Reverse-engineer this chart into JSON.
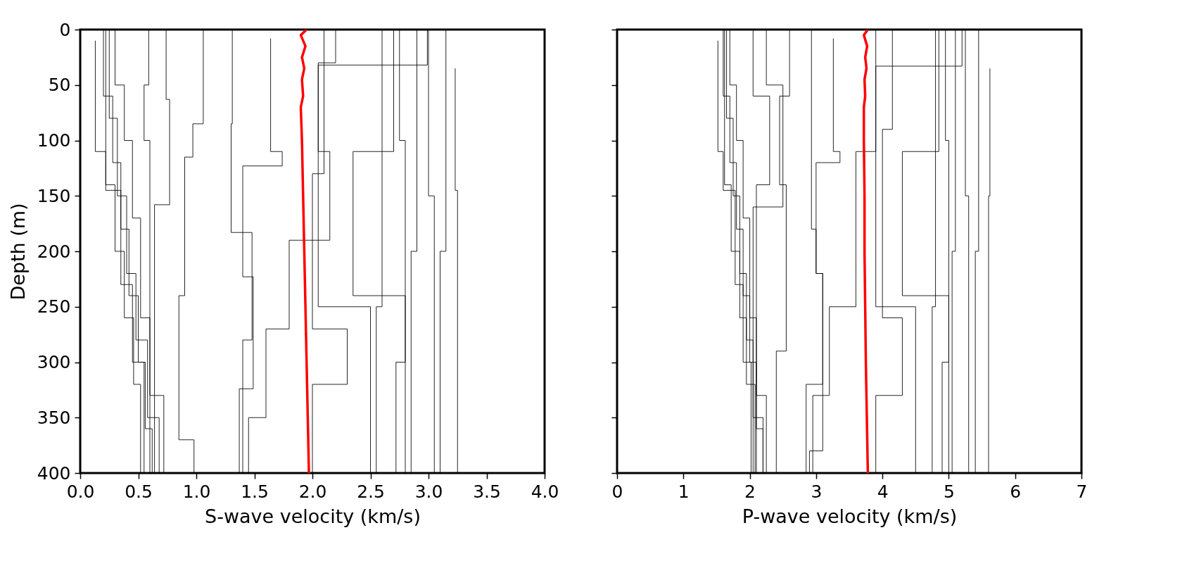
{
  "chart_data": [
    {
      "type": "line",
      "xlabel": "S-wave velocity (km/s)",
      "ylabel": "Depth (m)",
      "xlim": [
        0,
        4
      ],
      "ylim": [
        400,
        0
      ],
      "xticks": [
        {
          "value": 0,
          "label": "0.0"
        },
        {
          "value": 0.5,
          "label": "0.5"
        },
        {
          "value": 1,
          "label": "1.0"
        },
        {
          "value": 1.5,
          "label": "1.5"
        },
        {
          "value": 2,
          "label": "2.0"
        },
        {
          "value": 2.5,
          "label": "2.5"
        },
        {
          "value": 3,
          "label": "3.0"
        },
        {
          "value": 3.5,
          "label": "3.5"
        },
        {
          "value": 4,
          "label": "4.0"
        }
      ],
      "yticks": [
        0,
        50,
        100,
        150,
        200,
        250,
        300,
        350,
        400
      ],
      "grid": false,
      "series": [
        {
          "color": "#000000",
          "x": [
            0.2,
            0.2,
            0.28,
            0.28,
            0.35,
            0.35,
            0.42,
            0.42,
            0.5,
            0.5,
            0.56,
            0.56,
            0.62,
            0.62
          ],
          "values": [
            0,
            60,
            60,
            120,
            120,
            180,
            180,
            240,
            240,
            300,
            300,
            360,
            360,
            400
          ]
        },
        {
          "color": "#000000",
          "x": [
            0.25,
            0.25,
            0.32,
            0.32,
            0.4,
            0.4,
            0.48,
            0.48,
            0.58,
            0.58,
            0.68,
            0.68
          ],
          "values": [
            0,
            80,
            80,
            150,
            150,
            220,
            220,
            280,
            280,
            350,
            350,
            400
          ]
        },
        {
          "color": "#000000",
          "x": [
            0.13,
            0.13,
            0.22,
            0.22,
            0.35,
            0.35,
            0.45,
            0.45,
            0.55,
            0.55
          ],
          "values": [
            10,
            110,
            110,
            145,
            145,
            230,
            230,
            300,
            300,
            400
          ]
        },
        {
          "color": "#000000",
          "x": [
            0.3,
            0.3,
            0.38,
            0.38,
            0.45,
            0.45,
            0.52,
            0.52,
            0.6,
            0.6,
            0.72,
            0.72
          ],
          "values": [
            0,
            50,
            50,
            100,
            100,
            170,
            170,
            260,
            260,
            330,
            330,
            400
          ]
        },
        {
          "color": "#000000",
          "x": [
            0.22,
            0.22,
            0.3,
            0.3,
            0.38,
            0.38,
            0.46,
            0.46,
            0.52,
            0.52
          ],
          "values": [
            0,
            140,
            140,
            200,
            200,
            260,
            260,
            320,
            320,
            400
          ]
        },
        {
          "color": "#000000",
          "x": [
            0.59,
            0.59,
            0.55,
            0.55,
            0.6,
            0.6
          ],
          "values": [
            0,
            50,
            50,
            100,
            100,
            400
          ]
        },
        {
          "color": "#000000",
          "x": [
            0.74,
            0.74,
            0.77,
            0.77,
            0.64,
            0.64
          ],
          "values": [
            0,
            63,
            63,
            158,
            158,
            400
          ]
        },
        {
          "color": "#000000",
          "x": [
            1.06,
            1.06,
            0.97,
            0.97,
            0.9,
            0.9,
            0.85,
            0.85,
            0.98,
            0.98
          ],
          "values": [
            0,
            85,
            85,
            115,
            115,
            240,
            240,
            370,
            370,
            400
          ]
        },
        {
          "color": "#000000",
          "x": [
            1.31,
            1.31,
            1.3,
            1.3,
            1.48,
            1.48,
            1.4,
            1.4
          ],
          "values": [
            0,
            85,
            85,
            183,
            183,
            280,
            280,
            400
          ]
        },
        {
          "color": "#000000",
          "x": [
            1.64,
            1.64,
            1.74,
            1.74,
            1.4,
            1.4,
            1.49,
            1.49,
            1.37,
            1.37
          ],
          "values": [
            8,
            110,
            110,
            123,
            123,
            223,
            223,
            324,
            324,
            400
          ]
        },
        {
          "color": "#000000",
          "x": [
            2.2,
            2.2,
            2.05,
            2.05,
            2.15,
            2.15,
            1.8,
            1.8,
            1.6,
            1.6,
            1.45,
            1.45
          ],
          "values": [
            0,
            30,
            30,
            110,
            110,
            190,
            190,
            270,
            270,
            350,
            350,
            400
          ]
        },
        {
          "color": "#000000",
          "x": [
            2.1,
            2.1,
            2.0,
            2.0,
            2.3,
            2.3,
            2.0,
            2.0
          ],
          "values": [
            0,
            130,
            130,
            270,
            270,
            320,
            320,
            400
          ]
        },
        {
          "color": "#000000",
          "x": [
            2.6,
            2.6,
            2.55,
            2.55
          ],
          "values": [
            0,
            250,
            250,
            400
          ]
        },
        {
          "color": "#000000",
          "x": [
            2.75,
            2.75,
            2.8,
            2.8,
            2.72,
            2.72
          ],
          "values": [
            0,
            100,
            100,
            300,
            300,
            400
          ]
        },
        {
          "color": "#000000",
          "x": [
            2.9,
            2.9,
            2.85,
            2.85
          ],
          "values": [
            0,
            200,
            200,
            400
          ]
        },
        {
          "color": "#000000",
          "x": [
            3.0,
            3.0,
            3.05,
            3.05
          ],
          "values": [
            0,
            150,
            150,
            400
          ]
        },
        {
          "color": "#000000",
          "x": [
            3.15,
            3.15,
            3.1,
            3.1
          ],
          "values": [
            0,
            200,
            200,
            400
          ]
        },
        {
          "color": "#000000",
          "x": [
            3.23,
            3.23,
            3.25,
            3.25
          ],
          "values": [
            35,
            145,
            145,
            400
          ]
        },
        {
          "color": "#000000",
          "x": [
            2.99,
            2.99,
            2.05,
            2.05,
            2.5,
            2.5
          ],
          "values": [
            0,
            32,
            32,
            250,
            250,
            400
          ]
        },
        {
          "color": "#000000",
          "x": [
            2.7,
            2.7,
            2.35,
            2.35,
            2.8,
            2.8
          ],
          "values": [
            0,
            110,
            110,
            240,
            240,
            400
          ]
        },
        {
          "color": "#ff0000",
          "x": [
            1.95,
            1.9,
            1.94,
            1.91,
            1.93,
            1.91,
            1.92,
            1.9,
            1.91,
            1.92,
            1.93,
            1.94,
            1.95,
            1.97
          ],
          "values": [
            0,
            5,
            15,
            25,
            35,
            45,
            60,
            70,
            100,
            150,
            200,
            250,
            300,
            400
          ]
        }
      ]
    },
    {
      "type": "line",
      "xlabel": "P-wave velocity (km/s)",
      "xlim": [
        0,
        7
      ],
      "ylim": [
        400,
        0
      ],
      "xticks": [
        0,
        1,
        2,
        3,
        4,
        5,
        6,
        7
      ],
      "yticks": [
        0,
        50,
        100,
        150,
        200,
        250,
        300,
        350,
        400
      ],
      "grid": false,
      "tick_labels": "x",
      "series": [
        {
          "color": "#000000",
          "x": [
            1.6,
            1.6,
            1.7,
            1.7,
            1.8,
            1.8,
            1.9,
            1.9,
            2.0,
            2.0,
            2.1,
            2.1,
            2.2,
            2.2
          ],
          "values": [
            0,
            60,
            60,
            120,
            120,
            180,
            180,
            240,
            240,
            300,
            300,
            360,
            360,
            400
          ]
        },
        {
          "color": "#000000",
          "x": [
            1.65,
            1.65,
            1.75,
            1.75,
            1.85,
            1.85,
            1.95,
            1.95,
            2.05,
            2.05,
            2.2,
            2.2
          ],
          "values": [
            0,
            80,
            80,
            150,
            150,
            220,
            220,
            280,
            280,
            350,
            350,
            400
          ]
        },
        {
          "color": "#000000",
          "x": [
            1.52,
            1.52,
            1.6,
            1.6,
            1.78,
            1.78,
            1.9,
            1.9,
            2.02,
            2.02
          ],
          "values": [
            10,
            110,
            110,
            145,
            145,
            230,
            230,
            300,
            300,
            400
          ]
        },
        {
          "color": "#000000",
          "x": [
            1.7,
            1.7,
            1.8,
            1.8,
            1.9,
            1.9,
            2.0,
            2.0,
            2.1,
            2.1,
            2.25,
            2.25
          ],
          "values": [
            0,
            50,
            50,
            100,
            100,
            170,
            170,
            260,
            260,
            330,
            330,
            400
          ]
        },
        {
          "color": "#000000",
          "x": [
            1.62,
            1.62,
            1.72,
            1.72,
            1.85,
            1.85,
            1.95,
            1.95,
            2.08,
            2.08
          ],
          "values": [
            0,
            140,
            140,
            200,
            200,
            260,
            260,
            320,
            320,
            400
          ]
        },
        {
          "color": "#000000",
          "x": [
            2.05,
            2.05,
            2.3,
            2.3,
            2.1,
            2.1
          ],
          "values": [
            0,
            60,
            60,
            140,
            140,
            400
          ]
        },
        {
          "color": "#000000",
          "x": [
            2.25,
            2.25,
            2.5,
            2.5,
            2.05,
            2.05
          ],
          "values": [
            0,
            50,
            50,
            160,
            160,
            400
          ]
        },
        {
          "color": "#000000",
          "x": [
            2.6,
            2.6,
            2.45,
            2.45,
            2.55,
            2.55,
            2.4,
            2.4
          ],
          "values": [
            0,
            60,
            60,
            140,
            140,
            290,
            290,
            400
          ]
        },
        {
          "color": "#000000",
          "x": [
            2.93,
            2.93,
            3.0,
            3.0,
            3.1,
            3.1,
            2.9,
            2.9
          ],
          "values": [
            0,
            180,
            180,
            220,
            220,
            380,
            380,
            400
          ]
        },
        {
          "color": "#000000",
          "x": [
            3.26,
            3.26,
            3.36,
            3.36,
            3.0,
            3.0,
            3.1,
            3.1,
            2.85,
            2.85
          ],
          "values": [
            8,
            110,
            110,
            120,
            120,
            220,
            220,
            320,
            320,
            400
          ]
        },
        {
          "color": "#000000",
          "x": [
            3.9,
            3.9,
            3.6,
            3.6,
            3.2,
            3.2,
            2.95,
            2.95
          ],
          "values": [
            0,
            110,
            110,
            250,
            250,
            330,
            330,
            400
          ]
        },
        {
          "color": "#000000",
          "x": [
            4.15,
            4.15,
            4.0,
            4.0,
            4.3,
            4.3,
            3.9,
            3.9
          ],
          "values": [
            0,
            90,
            90,
            260,
            260,
            330,
            330,
            400
          ]
        },
        {
          "color": "#000000",
          "x": [
            4.8,
            4.8,
            4.75,
            4.75
          ],
          "values": [
            0,
            250,
            250,
            400
          ]
        },
        {
          "color": "#000000",
          "x": [
            4.95,
            4.95,
            5.0,
            5.0,
            4.9,
            4.9
          ],
          "values": [
            0,
            100,
            100,
            300,
            300,
            400
          ]
        },
        {
          "color": "#000000",
          "x": [
            5.1,
            5.1,
            5.05,
            5.05
          ],
          "values": [
            0,
            200,
            200,
            400
          ]
        },
        {
          "color": "#000000",
          "x": [
            5.25,
            5.25,
            5.3,
            5.3
          ],
          "values": [
            0,
            150,
            150,
            400
          ]
        },
        {
          "color": "#000000",
          "x": [
            5.45,
            5.45,
            5.4,
            5.4
          ],
          "values": [
            0,
            200,
            200,
            400
          ]
        },
        {
          "color": "#000000",
          "x": [
            5.62,
            5.62,
            5.6,
            5.6
          ],
          "values": [
            35,
            150,
            150,
            400
          ]
        },
        {
          "color": "#000000",
          "x": [
            5.2,
            5.2,
            3.9,
            3.9,
            4.5,
            4.5
          ],
          "values": [
            0,
            33,
            33,
            250,
            250,
            400
          ]
        },
        {
          "color": "#000000",
          "x": [
            4.85,
            4.85,
            4.3,
            4.3,
            5.0,
            5.0
          ],
          "values": [
            0,
            110,
            110,
            240,
            240,
            400
          ]
        },
        {
          "color": "#ff0000",
          "x": [
            3.78,
            3.72,
            3.77,
            3.74,
            3.76,
            3.73,
            3.74,
            3.72,
            3.72,
            3.73,
            3.73,
            3.74,
            3.75,
            3.78
          ],
          "values": [
            0,
            5,
            15,
            25,
            35,
            45,
            60,
            70,
            100,
            150,
            200,
            250,
            300,
            400
          ]
        }
      ]
    }
  ]
}
